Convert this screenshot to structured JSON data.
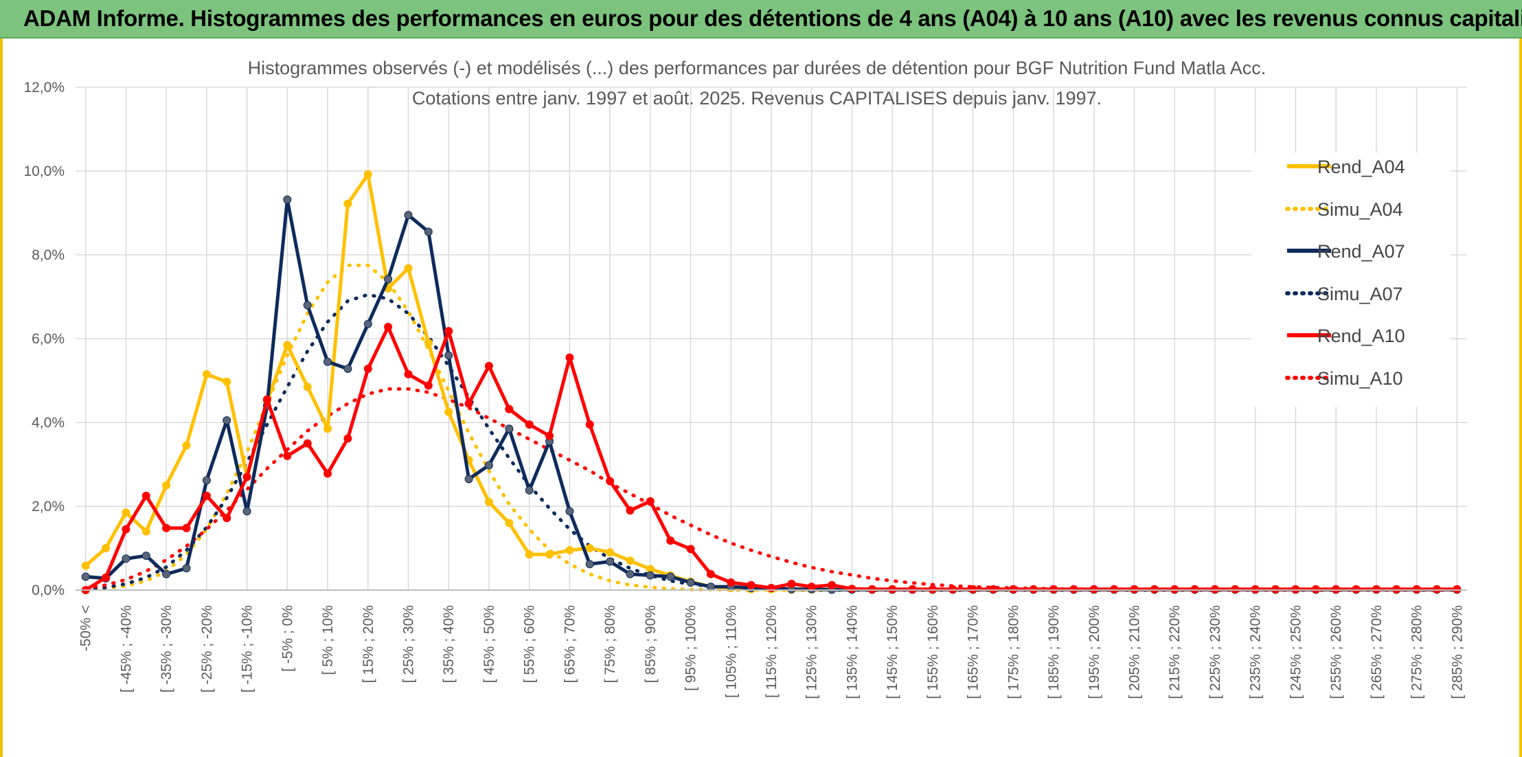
{
  "header": {
    "title": "ADAM Informe. Histogrammes des performances en euros pour des détentions de 4 ans (A04) à 10 ans (A10) avec les revenus connus capitalisés"
  },
  "colors": {
    "header_bg": "#7cc47e",
    "frame": "#f2c200",
    "grid": "#d9d9d9",
    "axis_text": "#595959",
    "A04": "#ffc000",
    "A07": "#0e2b5c",
    "A10": "#ff0000"
  },
  "chart_data": {
    "type": "line",
    "title": "Histogrammes observés (-) et modélisés (...) des performances par durées de détention pour BGF Nutrition Fund Matla Acc.",
    "subtitle": "Cotations entre janv. 1997 et août. 2025. Revenus CAPITALISES depuis janv. 1997.",
    "xlabel": "",
    "ylabel": "",
    "ylim": [
      0,
      12
    ],
    "y_ticks": [
      "0,0%",
      "2,0%",
      "4,0%",
      "6,0%",
      "8,0%",
      "10,0%",
      "12,0%"
    ],
    "x_tick_labels": [
      "-50% <",
      "[ -45% ; -40%",
      "[ -35% ; -30%",
      "[ -25% ; -20%",
      "[ -15% ; -10%",
      "[ -5% ; 0%",
      "[ 5% ; 10%",
      "[ 15% ; 20%",
      "[ 25% ; 30%",
      "[ 35% ; 40%",
      "[ 45% ; 50%",
      "[ 55% ; 60%",
      "[ 65% ; 70%",
      "[ 75% ; 80%",
      "[ 85% ; 90%",
      "[ 95% ; 100%",
      "[ 105% ; 110%",
      "[ 115% ; 120%",
      "[ 125% ; 130%",
      "[ 135% ; 140%",
      "[ 145% ; 150%",
      "[ 155% ; 160%",
      "[ 165% ; 170%",
      "[ 175% ; 180%",
      "[ 185% ; 190%",
      "[ 195% ; 200%",
      "[ 205% ; 210%",
      "[ 215% ; 220%",
      "[ 225% ; 230%",
      "[ 235% ; 240%",
      "[ 245% ; 250%",
      "[ 255% ; 260%",
      "[ 265% ; 270%",
      "[ 275% ; 280%",
      "[ 285% ; 290%"
    ],
    "n_bins": 69,
    "grid": true,
    "legend_position": "right",
    "series": [
      {
        "name": "Rend_A04",
        "style": "solid",
        "markers": true,
        "color": "#ffc000",
        "values": [
          0.58,
          1.0,
          1.85,
          1.4,
          2.5,
          3.45,
          5.15,
          4.97,
          2.7,
          4.5,
          5.85,
          4.85,
          3.85,
          9.22,
          9.92,
          7.2,
          7.68,
          5.9,
          4.25,
          3.1,
          2.1,
          1.6,
          0.85,
          0.85,
          0.95,
          1.0,
          0.9,
          0.7,
          0.5,
          0.35,
          0.2,
          0.08,
          0.05,
          0.02,
          0.02,
          0.01,
          0.01,
          0.01,
          0.01,
          0.01,
          0.01,
          0.01,
          0.01,
          0.01,
          0.01,
          0.01,
          0.01,
          0.01,
          0.01,
          0.01,
          0.01,
          0.01,
          0.01,
          0.01,
          0.01,
          0.01,
          0.01,
          0.01,
          0.01,
          0.01,
          0.01,
          0.01,
          0.01,
          0.01,
          0.01,
          0.01,
          0.01,
          0.01,
          0.01
        ]
      },
      {
        "name": "Simu_A04",
        "style": "dotted",
        "markers": false,
        "color": "#ffc000",
        "values": [
          0.01,
          0.04,
          0.1,
          0.22,
          0.45,
          0.85,
          1.45,
          2.3,
          3.3,
          4.45,
          5.6,
          6.6,
          7.35,
          7.75,
          7.75,
          7.35,
          6.65,
          5.75,
          4.75,
          3.75,
          2.85,
          2.05,
          1.45,
          0.95,
          0.62,
          0.38,
          0.22,
          0.12,
          0.07,
          0.03,
          0.01,
          0.01,
          0.0,
          0.0,
          0.0,
          0.0,
          0.0,
          0.0,
          0.0,
          0.0,
          0.0,
          0.0,
          0.0,
          0.0,
          0.0,
          0.0,
          0.0,
          0.0,
          0.0,
          0.0,
          0.0,
          0.0,
          0.0,
          0.0,
          0.0,
          0.0,
          0.0,
          0.0,
          0.0,
          0.0,
          0.0,
          0.0,
          0.0,
          0.0,
          0.0,
          0.0,
          0.0,
          0.0,
          0.0
        ]
      },
      {
        "name": "Rend_A07",
        "style": "solid",
        "markers": true,
        "color": "#0e2b5c",
        "values": [
          0.32,
          0.28,
          0.75,
          0.82,
          0.38,
          0.52,
          2.62,
          4.05,
          1.88,
          4.4,
          9.32,
          6.8,
          5.45,
          5.28,
          6.35,
          7.42,
          8.95,
          8.55,
          5.6,
          2.65,
          2.98,
          3.85,
          2.38,
          3.55,
          1.88,
          0.62,
          0.68,
          0.38,
          0.35,
          0.32,
          0.18,
          0.08,
          0.08,
          0.05,
          0.05,
          0.02,
          0.02,
          0.01,
          0.01,
          0.01,
          0.01,
          0.01,
          0.01,
          0.01,
          0.01,
          0.01,
          0.01,
          0.01,
          0.01,
          0.01,
          0.01,
          0.01,
          0.01,
          0.01,
          0.01,
          0.01,
          0.01,
          0.01,
          0.01,
          0.01,
          0.01,
          0.01,
          0.01,
          0.01,
          0.01,
          0.01,
          0.01,
          0.01,
          0.01
        ]
      },
      {
        "name": "Simu_A07",
        "style": "dotted",
        "markers": false,
        "color": "#0e2b5c",
        "values": [
          0.02,
          0.06,
          0.15,
          0.3,
          0.55,
          0.95,
          1.5,
          2.2,
          3.05,
          3.95,
          4.85,
          5.7,
          6.4,
          6.9,
          7.05,
          6.95,
          6.6,
          6.05,
          5.35,
          4.6,
          3.85,
          3.15,
          2.5,
          1.95,
          1.45,
          1.05,
          0.75,
          0.52,
          0.35,
          0.22,
          0.14,
          0.09,
          0.05,
          0.03,
          0.02,
          0.01,
          0.0,
          0.0,
          0.0,
          0.0,
          0.0,
          0.0,
          0.0,
          0.0,
          0.0,
          0.0,
          0.0,
          0.0,
          0.0,
          0.0,
          0.0,
          0.0,
          0.0,
          0.0,
          0.0,
          0.0,
          0.0,
          0.0,
          0.0,
          0.0,
          0.0,
          0.0,
          0.0,
          0.0,
          0.0,
          0.0,
          0.0,
          0.0,
          0.0
        ]
      },
      {
        "name": "Rend_A10",
        "style": "solid",
        "markers": true,
        "color": "#ff0000",
        "values": [
          0.0,
          0.3,
          1.45,
          2.25,
          1.48,
          1.48,
          2.25,
          1.72,
          2.7,
          4.55,
          3.2,
          3.5,
          2.78,
          3.62,
          5.28,
          6.28,
          5.15,
          4.88,
          6.18,
          4.45,
          5.35,
          4.32,
          3.95,
          3.68,
          5.55,
          3.95,
          2.6,
          1.9,
          2.12,
          1.18,
          0.98,
          0.38,
          0.18,
          0.12,
          0.05,
          0.15,
          0.08,
          0.12,
          0.03,
          0.02,
          0.02,
          0.02,
          0.02,
          0.02,
          0.02,
          0.02,
          0.02,
          0.02,
          0.02,
          0.02,
          0.02,
          0.02,
          0.02,
          0.02,
          0.02,
          0.02,
          0.02,
          0.02,
          0.02,
          0.02,
          0.02,
          0.02,
          0.02,
          0.02,
          0.02,
          0.02,
          0.02,
          0.02,
          0.02
        ]
      },
      {
        "name": "Simu_A10",
        "style": "dotted",
        "markers": false,
        "color": "#ff0000",
        "values": [
          0.05,
          0.12,
          0.25,
          0.45,
          0.72,
          1.05,
          1.45,
          1.9,
          2.4,
          2.9,
          3.35,
          3.8,
          4.15,
          4.45,
          4.68,
          4.8,
          4.8,
          4.72,
          4.55,
          4.35,
          4.1,
          3.85,
          3.6,
          3.35,
          3.1,
          2.85,
          2.55,
          2.3,
          2.05,
          1.78,
          1.55,
          1.32,
          1.12,
          0.95,
          0.8,
          0.66,
          0.54,
          0.44,
          0.36,
          0.28,
          0.22,
          0.17,
          0.13,
          0.1,
          0.08,
          0.06,
          0.05,
          0.04,
          0.03,
          0.02,
          0.02,
          0.01,
          0.01,
          0.01,
          0.01,
          0.01,
          0.0,
          0.0,
          0.0,
          0.0,
          0.0,
          0.0,
          0.0,
          0.0,
          0.0,
          0.0,
          0.0,
          0.0,
          0.0
        ]
      }
    ]
  }
}
